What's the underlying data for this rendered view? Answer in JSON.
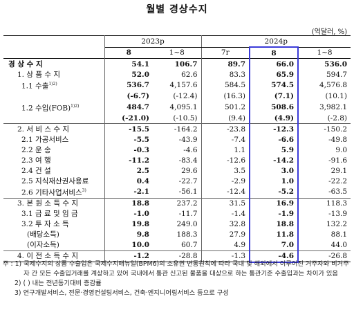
{
  "title": "월별 경상수지",
  "unit": "(억달러, %)",
  "headers": {
    "year_2023": "2023p",
    "year_2024": "2024p",
    "col_2023_m": "8",
    "col_2023_ytd": "1~8",
    "col_2024_prev": "7r",
    "col_2024_m": "8",
    "col_2024_ytd": "1~8"
  },
  "rows": [
    {
      "label": "경 상 수 지",
      "level": 0,
      "bold": true,
      "values": [
        "54.1",
        "106.7",
        "89.7",
        "66.0",
        "536.0"
      ]
    },
    {
      "label": "1. 상 품 수 지",
      "level": 1,
      "bold": false,
      "values": [
        "52.0",
        "62.6",
        "83.3",
        "65.9",
        "594.7"
      ]
    },
    {
      "label": "1.1 수출",
      "sup": "1)2)",
      "level": 2,
      "bold": false,
      "values": [
        "536.7",
        "4,157.6",
        "584.5",
        "574.5",
        "4,576.8"
      ]
    },
    {
      "label": "",
      "level": 2,
      "bold": false,
      "values": [
        "(-6.7)",
        "(-12.4)",
        "(16.3)",
        "(7.1)",
        "(10.1)"
      ]
    },
    {
      "label": "1.2 수입(FOB)",
      "sup": "1)2)",
      "level": 2,
      "bold": false,
      "values": [
        "484.7",
        "4,095.1",
        "501.2",
        "508.6",
        "3,982.1"
      ]
    },
    {
      "label": "",
      "level": 2,
      "bold": false,
      "values": [
        "(-21.0)",
        "(-10.5)",
        "(9.4)",
        "(4.9)",
        "(-2.8)"
      ]
    },
    {
      "label": "2. 서 비 스 수 지",
      "level": 1,
      "bold": false,
      "values": [
        "-15.5",
        "-164.2",
        "-23.8",
        "-12.3",
        "-150.2"
      ]
    },
    {
      "label": "2.1 가공서비스",
      "level": 2,
      "bold": false,
      "values": [
        "-5.5",
        "-43.9",
        "-7.4",
        "-6.6",
        "-49.8"
      ]
    },
    {
      "label": "2.2 운 송",
      "level": 2,
      "bold": false,
      "values": [
        "-0.3",
        "-4.6",
        "1.1",
        "5.9",
        "9.0"
      ]
    },
    {
      "label": "2.3 여 행",
      "level": 2,
      "bold": false,
      "values": [
        "-11.2",
        "-83.4",
        "-12.6",
        "-14.2",
        "-91.6"
      ]
    },
    {
      "label": "2.4 건 설",
      "level": 2,
      "bold": false,
      "values": [
        "2.5",
        "29.6",
        "3.5",
        "3.0",
        "29.1"
      ]
    },
    {
      "label": "2.5 지식재산권사용료",
      "level": 2,
      "bold": false,
      "values": [
        "0.4",
        "-22.7",
        "-2.9",
        "1.0",
        "-22.2"
      ]
    },
    {
      "label": "2.6 기타사업서비스",
      "sup": "3)",
      "level": 2,
      "bold": false,
      "values": [
        "-2.1",
        "-56.1",
        "-12.4",
        "-5.2",
        "-63.5"
      ]
    },
    {
      "label": "3. 본 원 소 득 수 지",
      "level": 1,
      "bold": false,
      "values": [
        "18.8",
        "237.2",
        "31.5",
        "16.9",
        "118.3"
      ]
    },
    {
      "label": "3.1 급 료 및 임 금",
      "level": 2,
      "bold": false,
      "values": [
        "-1.0",
        "-11.7",
        "-1.4",
        "-1.9",
        "-13.9"
      ]
    },
    {
      "label": "3.2 투 자 소 득",
      "level": 2,
      "bold": false,
      "values": [
        "19.8",
        "249.0",
        "32.8",
        "18.8",
        "132.2"
      ]
    },
    {
      "label": "(배당소득)",
      "level": 3,
      "bold": false,
      "values": [
        "9.8",
        "188.3",
        "27.9",
        "11.8",
        "88.1"
      ]
    },
    {
      "label": "(이자소득)",
      "level": 3,
      "bold": false,
      "values": [
        "10.0",
        "60.7",
        "4.9",
        "7.0",
        "44.0"
      ]
    },
    {
      "label": "4. 이 전 소 득 수 지",
      "level": 1,
      "bold": false,
      "values": [
        "-1.2",
        "-28.8",
        "-1.3",
        "-4.6",
        "-26.8"
      ]
    }
  ],
  "notes": [
    {
      "key": "주 : 1)",
      "text": "국제수지의 상품 수출입은 국제수지매뉴얼(BPM6)의 소유권 변동원칙에 따라 국내 및 해외에서 이루어진 거주자와 비거주자 간 모든 수출입거래를 계상하고 있어 국내에서 통관 신고된 물품을 대상으로 하는 통관기준 수출입과는 차이가 있음"
    },
    {
      "key": "2)",
      "text": "( ) 내는 전년동기대비 증감률"
    },
    {
      "key": "3)",
      "text": "연구개발서비스, 전문·경영컨설팅서비스, 건축·엔지니어링서비스 등으로 구성"
    }
  ]
}
